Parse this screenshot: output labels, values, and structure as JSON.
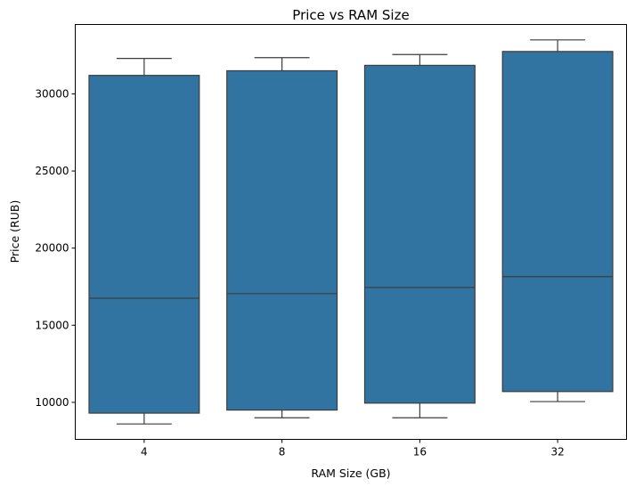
{
  "chart_data": {
    "type": "box",
    "title": "Price vs RAM Size",
    "xlabel": "RAM Size (GB)",
    "ylabel": "Price (RUB)",
    "categories": [
      "4",
      "8",
      "16",
      "32"
    ],
    "ylim": [
      7600,
      34500
    ],
    "yticks": [
      10000,
      15000,
      20000,
      25000,
      30000
    ],
    "color": "#3274a1",
    "edge_color": "#3d3d3d",
    "grid": false,
    "boxes": [
      {
        "category": "4",
        "whisker_low": 8600,
        "q1": 9300,
        "median": 16750,
        "q3": 31200,
        "whisker_high": 32300
      },
      {
        "category": "8",
        "whisker_low": 9000,
        "q1": 9500,
        "median": 17050,
        "q3": 31500,
        "whisker_high": 32350
      },
      {
        "category": "16",
        "whisker_low": 9000,
        "q1": 9950,
        "median": 17450,
        "q3": 31850,
        "whisker_high": 32550
      },
      {
        "category": "32",
        "whisker_low": 10050,
        "q1": 10700,
        "median": 18150,
        "q3": 32750,
        "whisker_high": 33500
      }
    ]
  }
}
